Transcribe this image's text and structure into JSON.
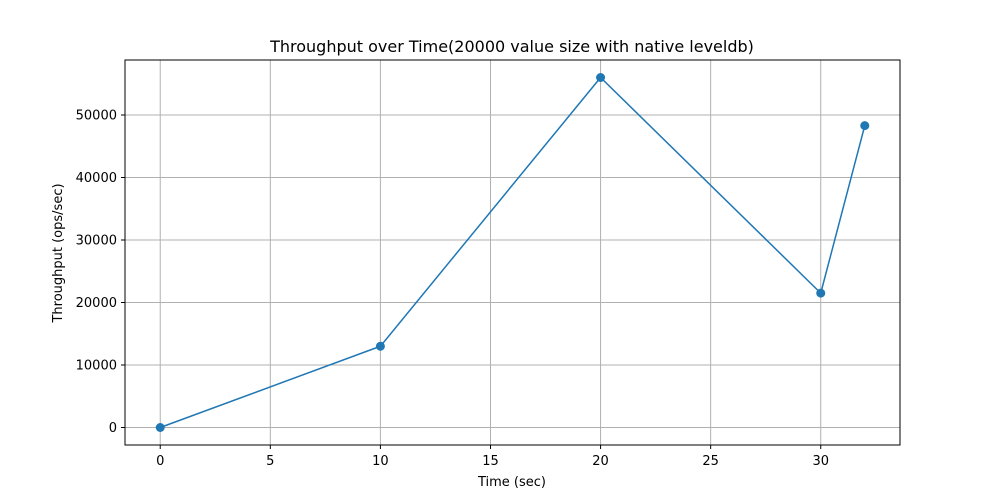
{
  "chart_data": {
    "type": "line",
    "title": "Throughput over Time(20000 value size with native leveldb)",
    "xlabel": "Time (sec)",
    "ylabel": "Throughput (ops/sec)",
    "xlim": [
      -1.6,
      33.6
    ],
    "ylim": [
      -2800,
      58800
    ],
    "xticks": [
      0,
      5,
      10,
      15,
      20,
      25,
      30
    ],
    "yticks": [
      0,
      10000,
      20000,
      30000,
      40000,
      50000
    ],
    "grid": true,
    "series": [
      {
        "x": [
          0,
          10,
          20,
          30,
          32
        ],
        "y": [
          0,
          13000,
          56000,
          21500,
          48300
        ]
      }
    ],
    "colors": {
      "line": "#1f77b4",
      "grid": "#b0b0b0",
      "axis": "#000000"
    }
  }
}
